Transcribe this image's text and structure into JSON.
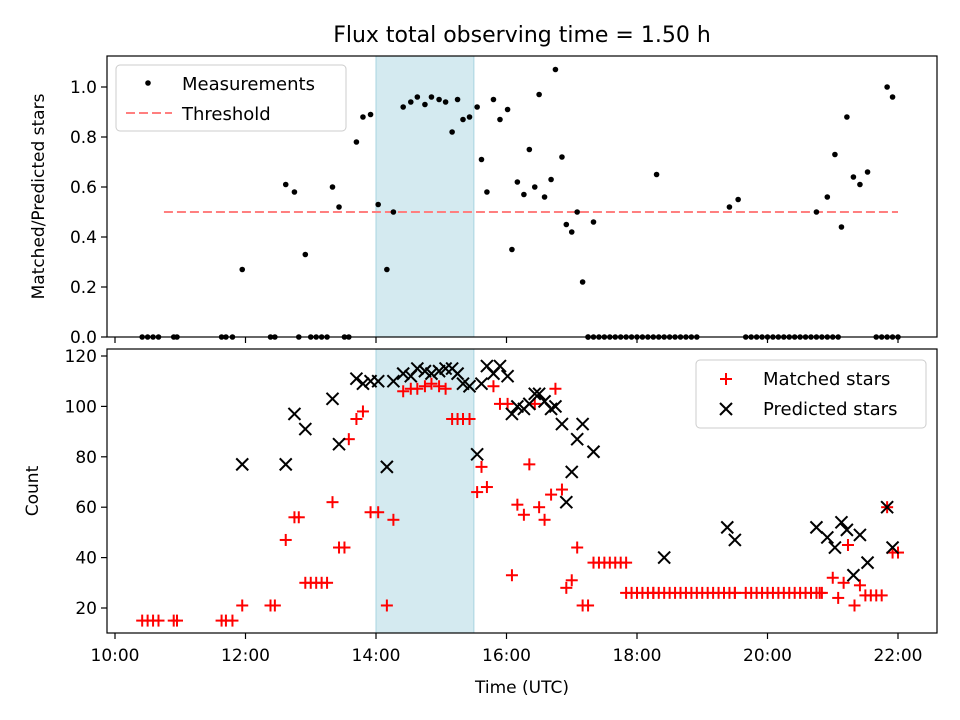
{
  "chart_data": [
    {
      "type": "scatter",
      "title": "Flux total observing time = 1.50 h",
      "xlabel": "",
      "ylabel": "Matched/Predicted stars",
      "xlim": [
        "10:00",
        "22:00"
      ],
      "ylim": [
        0,
        1.1
      ],
      "yticks": [
        "0.0",
        "0.2",
        "0.4",
        "0.6",
        "0.8",
        "1.0"
      ],
      "legend_position": "upper left",
      "series": [
        {
          "name": "Measurements",
          "marker": "dot",
          "color": "#000000",
          "points": [
            [
              "10:25",
              0
            ],
            [
              "10:30",
              0
            ],
            [
              "10:35",
              0
            ],
            [
              "10:40",
              0
            ],
            [
              "10:54",
              0
            ],
            [
              "10:57",
              0
            ],
            [
              "11:38",
              0
            ],
            [
              "11:42",
              0
            ],
            [
              "11:48",
              0
            ],
            [
              "11:57",
              0.27
            ],
            [
              "12:23",
              0
            ],
            [
              "12:27",
              0
            ],
            [
              "12:37",
              0.61
            ],
            [
              "12:45",
              0.58
            ],
            [
              "12:49",
              0
            ],
            [
              "12:55",
              0.33
            ],
            [
              "13:00",
              0
            ],
            [
              "13:05",
              0
            ],
            [
              "13:10",
              0
            ],
            [
              "13:15",
              0
            ],
            [
              "13:20",
              0.6
            ],
            [
              "13:26",
              0.52
            ],
            [
              "13:31",
              0
            ],
            [
              "13:35",
              0
            ],
            [
              "13:42",
              0.78
            ],
            [
              "13:48",
              0.88
            ],
            [
              "13:55",
              0.89
            ],
            [
              "14:02",
              0.53
            ],
            [
              "14:10",
              0.27
            ],
            [
              "14:16",
              0.5
            ],
            [
              "14:25",
              0.92
            ],
            [
              "14:32",
              0.94
            ],
            [
              "14:38",
              0.96
            ],
            [
              "14:45",
              0.93
            ],
            [
              "14:51",
              0.96
            ],
            [
              "14:58",
              0.95
            ],
            [
              "15:04",
              0.94
            ],
            [
              "15:10",
              0.82
            ],
            [
              "15:15",
              0.95
            ],
            [
              "15:20",
              0.87
            ],
            [
              "15:26",
              0.88
            ],
            [
              "15:33",
              0.92
            ],
            [
              "15:37",
              0.71
            ],
            [
              "15:42",
              0.58
            ],
            [
              "15:48",
              0.95
            ],
            [
              "15:54",
              0.87
            ],
            [
              "16:01",
              0.91
            ],
            [
              "16:05",
              0.35
            ],
            [
              "16:10",
              0.62
            ],
            [
              "16:16",
              0.57
            ],
            [
              "16:21",
              0.75
            ],
            [
              "16:26",
              0.6
            ],
            [
              "16:30",
              0.97
            ],
            [
              "16:35",
              0.56
            ],
            [
              "16:41",
              0.63
            ],
            [
              "16:45",
              1.07
            ],
            [
              "16:51",
              0.72
            ],
            [
              "16:55",
              0.45
            ],
            [
              "17:00",
              0.42
            ],
            [
              "17:05",
              0.5
            ],
            [
              "17:10",
              0.22
            ],
            [
              "17:15",
              0
            ],
            [
              "17:20",
              0.46
            ],
            [
              "18:18",
              0.65
            ],
            [
              "19:25",
              0.52
            ],
            [
              "19:33",
              0.55
            ],
            [
              "20:45",
              0.5
            ],
            [
              "20:55",
              0.56
            ],
            [
              "21:02",
              0.73
            ],
            [
              "21:08",
              0.44
            ],
            [
              "21:13",
              0.88
            ],
            [
              "21:19",
              0.64
            ],
            [
              "21:25",
              0.61
            ],
            [
              "21:32",
              0.66
            ],
            [
              "21:50",
              1.0
            ],
            [
              "21:55",
              0.96
            ],
            [
              "22:00",
              0
            ]
          ],
          "zero_ranges": [
            [
              "17:15",
              "18:55"
            ],
            [
              "19:40",
              "21:05"
            ],
            [
              "21:40",
              "21:55"
            ]
          ]
        },
        {
          "name": "Threshold",
          "marker": "dashed-line",
          "color": "#ff7f7f",
          "x": [
            "10:45",
            "22:00"
          ],
          "y": [
            0.5,
            0.5
          ]
        }
      ]
    },
    {
      "type": "scatter",
      "title": "",
      "xlabel": "Time (UTC)",
      "ylabel": "Count",
      "xlim": [
        "10:00",
        "22:00"
      ],
      "ylim": [
        10,
        120
      ],
      "yticks": [
        "20",
        "40",
        "60",
        "80",
        "100",
        "120"
      ],
      "xticks": [
        "10:00",
        "12:00",
        "14:00",
        "16:00",
        "18:00",
        "20:00",
        "22:00"
      ],
      "legend_position": "upper right",
      "series": [
        {
          "name": "Matched stars",
          "marker": "plus",
          "color": "#ff0000",
          "points": [
            [
              "10:25",
              15
            ],
            [
              "10:30",
              15
            ],
            [
              "10:35",
              15
            ],
            [
              "10:40",
              15
            ],
            [
              "10:54",
              15
            ],
            [
              "10:57",
              15
            ],
            [
              "11:38",
              15
            ],
            [
              "11:42",
              15
            ],
            [
              "11:48",
              15
            ],
            [
              "11:57",
              21
            ],
            [
              "12:23",
              21
            ],
            [
              "12:27",
              21
            ],
            [
              "12:37",
              47
            ],
            [
              "12:45",
              56
            ],
            [
              "12:49",
              56
            ],
            [
              "12:55",
              30
            ],
            [
              "13:00",
              30
            ],
            [
              "13:05",
              30
            ],
            [
              "13:10",
              30
            ],
            [
              "13:15",
              30
            ],
            [
              "13:20",
              62
            ],
            [
              "13:26",
              44
            ],
            [
              "13:31",
              44
            ],
            [
              "13:35",
              87
            ],
            [
              "13:42",
              95
            ],
            [
              "13:48",
              98
            ],
            [
              "13:55",
              58
            ],
            [
              "14:02",
              58
            ],
            [
              "14:10",
              21
            ],
            [
              "14:16",
              55
            ],
            [
              "14:25",
              106
            ],
            [
              "14:32",
              107
            ],
            [
              "14:38",
              107
            ],
            [
              "14:45",
              108
            ],
            [
              "14:51",
              109
            ],
            [
              "14:58",
              108
            ],
            [
              "15:04",
              107
            ],
            [
              "15:10",
              95
            ],
            [
              "15:15",
              95
            ],
            [
              "15:20",
              95
            ],
            [
              "15:26",
              95
            ],
            [
              "15:33",
              66
            ],
            [
              "15:37",
              76
            ],
            [
              "15:42",
              68
            ],
            [
              "15:48",
              108
            ],
            [
              "15:54",
              101
            ],
            [
              "16:01",
              101
            ],
            [
              "16:05",
              33
            ],
            [
              "16:10",
              61
            ],
            [
              "16:16",
              57
            ],
            [
              "16:21",
              77
            ],
            [
              "16:26",
              101
            ],
            [
              "16:30",
              60
            ],
            [
              "16:35",
              55
            ],
            [
              "16:41",
              65
            ],
            [
              "16:45",
              107
            ],
            [
              "16:51",
              67
            ],
            [
              "16:55",
              28
            ],
            [
              "17:00",
              31
            ],
            [
              "17:05",
              44
            ],
            [
              "17:10",
              21
            ],
            [
              "17:15",
              21
            ],
            [
              "17:20",
              38
            ],
            [
              "17:25",
              38
            ],
            [
              "17:30",
              38
            ],
            [
              "17:35",
              38
            ],
            [
              "17:40",
              38
            ],
            [
              "17:45",
              38
            ],
            [
              "17:50",
              38
            ],
            [
              "18:15",
              26
            ],
            [
              "19:30",
              26
            ],
            [
              "20:48",
              26
            ],
            [
              "21:00",
              32
            ],
            [
              "21:05",
              24
            ],
            [
              "21:10",
              30
            ],
            [
              "21:14",
              45
            ],
            [
              "21:20",
              21
            ],
            [
              "21:25",
              29
            ],
            [
              "21:30",
              25
            ],
            [
              "21:35",
              25
            ],
            [
              "21:40",
              25
            ],
            [
              "21:45",
              25
            ],
            [
              "21:50",
              60
            ],
            [
              "21:55",
              42
            ],
            [
              "22:00",
              42
            ]
          ],
          "constant_ranges": [
            [
              [
                "17:50",
                "19:30"
              ],
              26
            ],
            [
              [
                "19:40",
                "20:50"
              ],
              26
            ]
          ]
        },
        {
          "name": "Predicted stars",
          "marker": "x",
          "color": "#000000",
          "points": [
            [
              "11:57",
              77
            ],
            [
              "12:37",
              77
            ],
            [
              "12:45",
              97
            ],
            [
              "12:55",
              91
            ],
            [
              "13:20",
              103
            ],
            [
              "13:26",
              85
            ],
            [
              "13:42",
              111
            ],
            [
              "13:48",
              109
            ],
            [
              "13:55",
              110
            ],
            [
              "14:02",
              110
            ],
            [
              "14:10",
              76
            ],
            [
              "14:16",
              110
            ],
            [
              "14:25",
              113
            ],
            [
              "14:32",
              112
            ],
            [
              "14:38",
              115
            ],
            [
              "14:45",
              114
            ],
            [
              "14:51",
              113
            ],
            [
              "14:58",
              114
            ],
            [
              "15:04",
              115
            ],
            [
              "15:10",
              115
            ],
            [
              "15:15",
              113
            ],
            [
              "15:20",
              109
            ],
            [
              "15:26",
              108
            ],
            [
              "15:33",
              81
            ],
            [
              "15:37",
              109
            ],
            [
              "15:42",
              116
            ],
            [
              "15:48",
              113
            ],
            [
              "15:54",
              116
            ],
            [
              "16:01",
              112
            ],
            [
              "16:05",
              97
            ],
            [
              "16:10",
              100
            ],
            [
              "16:16",
              99
            ],
            [
              "16:21",
              101
            ],
            [
              "16:26",
              105
            ],
            [
              "16:30",
              105
            ],
            [
              "16:35",
              102
            ],
            [
              "16:41",
              99
            ],
            [
              "16:45",
              100
            ],
            [
              "16:51",
              93
            ],
            [
              "16:55",
              62
            ],
            [
              "17:00",
              74
            ],
            [
              "17:05",
              87
            ],
            [
              "17:10",
              93
            ],
            [
              "17:20",
              82
            ],
            [
              "18:25",
              40
            ],
            [
              "19:23",
              52
            ],
            [
              "19:30",
              47
            ],
            [
              "20:45",
              52
            ],
            [
              "20:55",
              48
            ],
            [
              "21:02",
              44
            ],
            [
              "21:08",
              54
            ],
            [
              "21:13",
              51
            ],
            [
              "21:19",
              33
            ],
            [
              "21:25",
              49
            ],
            [
              "21:32",
              38
            ],
            [
              "21:50",
              60
            ],
            [
              "21:55",
              44
            ]
          ]
        }
      ]
    }
  ],
  "highlight_span": {
    "start": "14:00",
    "end": "15:30",
    "color": "#d4eaf0"
  }
}
